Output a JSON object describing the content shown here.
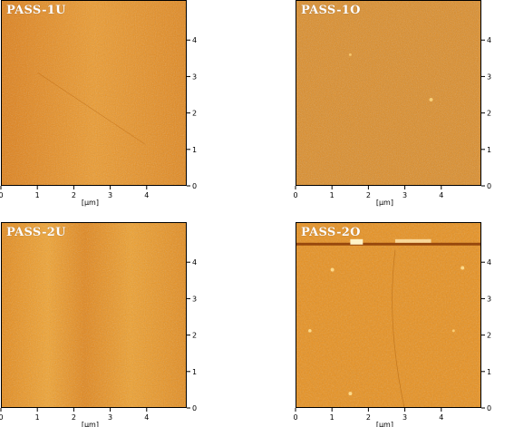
{
  "unit_label": "[μm]",
  "x_ticks": [
    "0",
    "1",
    "2",
    "3",
    "4"
  ],
  "y_ticks": [
    "0",
    "1",
    "2",
    "3",
    "4"
  ],
  "panels": [
    {
      "title": "PASS-1U",
      "color": "#e68f1f"
    },
    {
      "title": "PASS-1O",
      "color": "#e08a1c"
    },
    {
      "title": "PASS-2U",
      "color": "#eb961f"
    },
    {
      "title": "PASS-2O",
      "color": "#e8901d"
    }
  ]
}
